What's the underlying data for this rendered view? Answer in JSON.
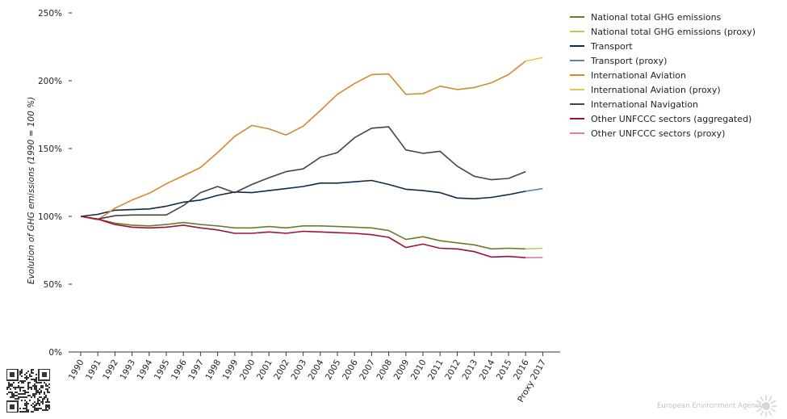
{
  "chart_data": {
    "type": "line",
    "ylabel": "Evolution of GHG emissions (1990 = 100 %)",
    "xlabel": "",
    "ylim": [
      0,
      250
    ],
    "yticks": [
      0,
      50,
      100,
      150,
      200,
      250
    ],
    "ytick_labels": [
      "0%",
      "50%",
      "100%",
      "150%",
      "200%",
      "250%"
    ],
    "categories": [
      "1990",
      "1991",
      "1992",
      "1993",
      "1994",
      "1995",
      "1996",
      "1997",
      "1998",
      "1999",
      "2000",
      "2001",
      "2002",
      "2003",
      "2004",
      "2005",
      "2006",
      "2007",
      "2008",
      "2009",
      "2010",
      "2011",
      "2012",
      "2013",
      "2014",
      "2015",
      "2016",
      "Proxy 2017"
    ],
    "series": [
      {
        "name": "National total GHG emissions",
        "color": "#6b7b2b",
        "values": [
          100,
          98,
          95,
          93.5,
          93,
          94,
          95.5,
          94,
          93,
          91.5,
          91.5,
          92.5,
          91.5,
          93,
          93,
          92.5,
          92,
          91.5,
          89.5,
          83,
          85,
          82,
          80.5,
          79,
          76,
          76.5,
          76,
          null
        ]
      },
      {
        "name": "National total GHG emissions (proxy)",
        "color": "#b3cf5b",
        "values": [
          null,
          null,
          null,
          null,
          null,
          null,
          null,
          null,
          null,
          null,
          null,
          null,
          null,
          null,
          null,
          null,
          null,
          null,
          null,
          null,
          null,
          null,
          null,
          null,
          null,
          null,
          76,
          76.5
        ]
      },
      {
        "name": "Transport",
        "color": "#0d2b4a",
        "values": [
          100,
          101.5,
          104.5,
          105,
          105.5,
          107.5,
          110.5,
          112,
          115.5,
          118,
          117.5,
          119,
          120.5,
          122,
          124.5,
          124.5,
          125.5,
          126.5,
          123.5,
          120,
          119,
          117.5,
          113.5,
          113,
          114,
          116,
          118.5,
          null
        ]
      },
      {
        "name": "Transport (proxy)",
        "color": "#5f86a6",
        "values": [
          null,
          null,
          null,
          null,
          null,
          null,
          null,
          null,
          null,
          null,
          null,
          null,
          null,
          null,
          null,
          null,
          null,
          null,
          null,
          null,
          null,
          null,
          null,
          null,
          null,
          null,
          118.5,
          120.5
        ]
      },
      {
        "name": "International Aviation",
        "color": "#d18b2b",
        "values": [
          100,
          97.5,
          106,
          112,
          117,
          124,
          130,
          136,
          147,
          159,
          167,
          164.5,
          160,
          166.5,
          178,
          190,
          198,
          204.5,
          205,
          190,
          190.5,
          196,
          193.5,
          195,
          198.5,
          204.5,
          214.5,
          null
        ]
      },
      {
        "name": "International Aviation (proxy)",
        "color": "#e8c547",
        "values": [
          null,
          null,
          null,
          null,
          null,
          null,
          null,
          null,
          null,
          null,
          null,
          null,
          null,
          null,
          null,
          null,
          null,
          null,
          null,
          null,
          null,
          null,
          null,
          null,
          null,
          null,
          214.5,
          217
        ]
      },
      {
        "name": "International Navigation",
        "color": "#444444",
        "values": [
          100,
          98,
          100.5,
          101,
          101,
          101,
          108,
          117.5,
          122,
          117.5,
          123.5,
          128.5,
          133,
          135,
          143.5,
          147,
          158,
          165,
          166,
          149,
          146.5,
          148,
          137,
          129.5,
          127,
          128,
          133,
          null
        ]
      },
      {
        "name": "Other UNFCCC sectors (aggregated)",
        "color": "#a0103d",
        "values": [
          100,
          98,
          94,
          92,
          91.5,
          92,
          93.5,
          91.5,
          90,
          87.5,
          87.5,
          88.5,
          87.5,
          89,
          88.5,
          88,
          87.5,
          86.5,
          84.5,
          77,
          79.5,
          76.5,
          76,
          74,
          70,
          70.5,
          69.5,
          null
        ]
      },
      {
        "name": "Other UNFCCC sectors (proxy)",
        "color": "#e07fa8",
        "values": [
          null,
          null,
          null,
          null,
          null,
          null,
          null,
          null,
          null,
          null,
          null,
          null,
          null,
          null,
          null,
          null,
          null,
          null,
          null,
          null,
          null,
          null,
          null,
          null,
          null,
          null,
          69.5,
          69.7
        ]
      }
    ]
  },
  "footer": {
    "brand": "European Environment Agency"
  }
}
